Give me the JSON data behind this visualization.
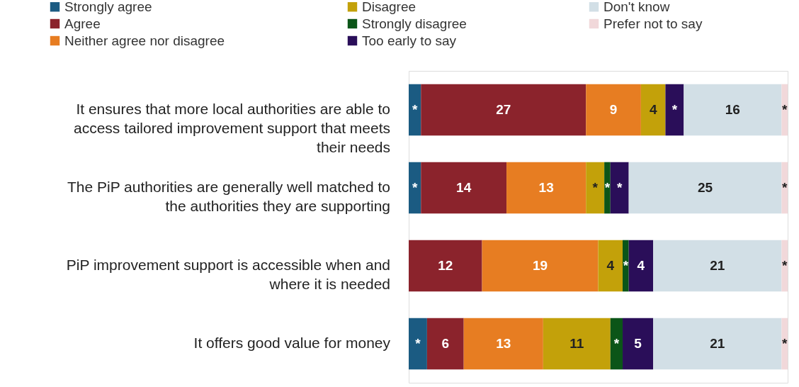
{
  "chart_data": {
    "type": "bar",
    "orientation": "horizontal",
    "stacked": true,
    "legend": "top",
    "categories": [
      "It ensures that more local authorities are able to access tailored improvement support that meets their needs",
      "The PiP authorities are generally well matched to the authorities they are supporting",
      "PiP improvement support is accessible when and where it is needed",
      "It offers good value for money"
    ],
    "series": [
      {
        "name": "Strongly agree",
        "color": "#1b5b82",
        "values": [
          2,
          2,
          0,
          3
        ],
        "value_labels": [
          "*",
          "*",
          null,
          "*"
        ]
      },
      {
        "name": "Agree",
        "color": "#8b232c",
        "values": [
          27,
          14,
          12,
          6
        ],
        "value_labels": [
          "27",
          "14",
          "12",
          "6"
        ]
      },
      {
        "name": "Neither agree nor disagree",
        "color": "#e77d22",
        "values": [
          9,
          13,
          19,
          13
        ],
        "value_labels": [
          "9",
          "13",
          "19",
          "13"
        ]
      },
      {
        "name": "Disagree",
        "color": "#c3a10a",
        "values": [
          4,
          3,
          4,
          11
        ],
        "value_labels": [
          "4",
          "*",
          "4",
          "11"
        ]
      },
      {
        "name": "Strongly disagree",
        "color": "#0b5518",
        "values": [
          0,
          1,
          1,
          2
        ],
        "value_labels": [
          null,
          "*",
          "*",
          "*"
        ]
      },
      {
        "name": "Too early to say",
        "color": "#2a0e59",
        "values": [
          3,
          3,
          4,
          5
        ],
        "value_labels": [
          "*",
          "*",
          "4",
          "5"
        ]
      },
      {
        "name": "Don't know",
        "color": "#d2dfe6",
        "values": [
          16,
          25,
          21,
          21
        ],
        "value_labels": [
          "16",
          "25",
          "21",
          "21"
        ]
      },
      {
        "name": "Prefer not to say",
        "color": "#f1d8da",
        "values": [
          1,
          1,
          1,
          1
        ],
        "value_labels": [
          "*",
          "*",
          "*",
          "*"
        ]
      }
    ]
  }
}
